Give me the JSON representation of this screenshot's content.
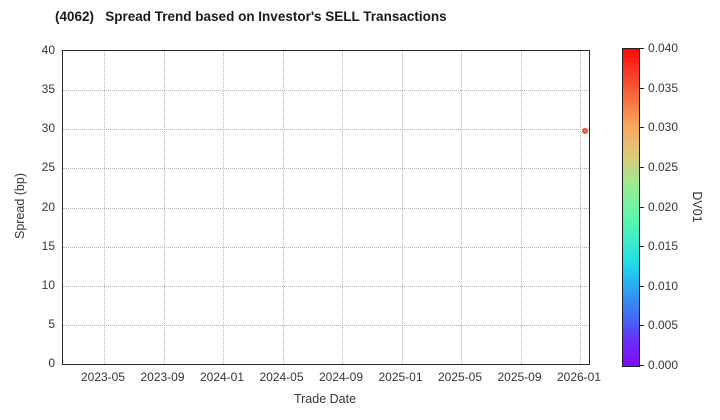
{
  "title": "(4062)   Spread Trend based on Investor's SELL Transactions",
  "chart_data": {
    "type": "scatter",
    "title": "(4062)   Spread Trend based on Investor's SELL Transactions",
    "xlabel": "Trade Date",
    "ylabel": "Spread (bp)",
    "ylim": [
      0,
      40
    ],
    "ytick_step": 5,
    "yticks": [
      "0",
      "5",
      "10",
      "15",
      "20",
      "25",
      "30",
      "35",
      "40"
    ],
    "xticks": [
      "2023-05",
      "2023-09",
      "2024-01",
      "2024-05",
      "2024-09",
      "2025-01",
      "2025-05",
      "2025-09",
      "2026-01"
    ],
    "grid": true,
    "points": [
      {
        "x_label": "2026-01",
        "x_fraction": 0.9915,
        "spread_bp": 29.8,
        "dv01_approx": 0.034,
        "color": "#f2663c"
      }
    ],
    "colorbar": {
      "label": "DV01",
      "min": 0.0,
      "max": 0.04,
      "tick_labels": [
        "0.000",
        "0.005",
        "0.010",
        "0.015",
        "0.020",
        "0.025",
        "0.030",
        "0.035",
        "0.040"
      ],
      "gradient_stops": [
        {
          "v": 0.0,
          "c": "#7e0df8"
        },
        {
          "v": 0.003,
          "c": "#6a2bfb"
        },
        {
          "v": 0.006,
          "c": "#4767f7"
        },
        {
          "v": 0.01,
          "c": "#28a9f2"
        },
        {
          "v": 0.013,
          "c": "#22dce8"
        },
        {
          "v": 0.016,
          "c": "#3defc6"
        },
        {
          "v": 0.019,
          "c": "#5ff7a8"
        },
        {
          "v": 0.023,
          "c": "#9beb8f"
        },
        {
          "v": 0.026,
          "c": "#d5ce7d"
        },
        {
          "v": 0.03,
          "c": "#f9a95f"
        },
        {
          "v": 0.035,
          "c": "#f55b33"
        },
        {
          "v": 0.04,
          "c": "#fb0a0a"
        }
      ]
    }
  }
}
